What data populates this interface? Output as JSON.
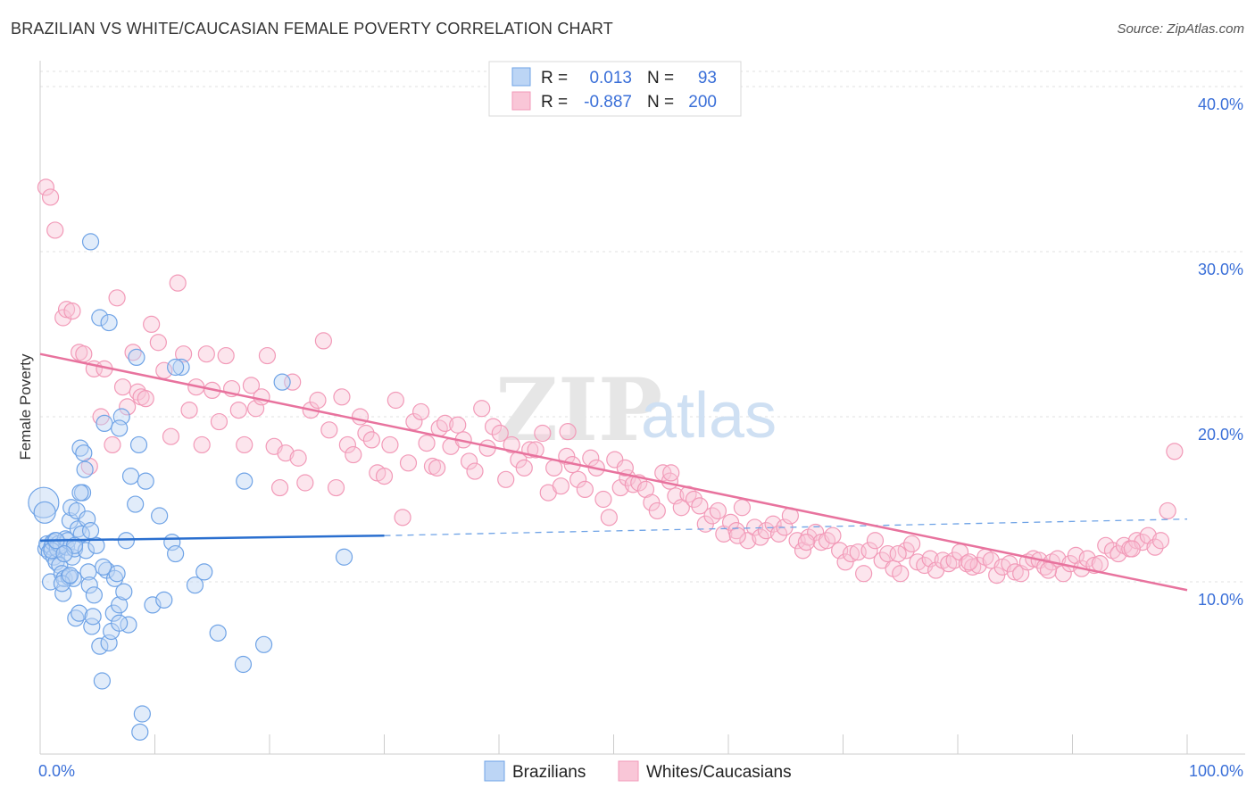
{
  "title": "BRAZILIAN VS WHITE/CAUCASIAN FEMALE POVERTY CORRELATION CHART",
  "source": "Source: ZipAtlas.com",
  "watermark": {
    "zip": "ZIP",
    "atlas": "atlas"
  },
  "colors": {
    "blue": "#6fa3e6",
    "blue_line": "#2a6fcf",
    "pink": "#f29ab8",
    "pink_line": "#e8739e",
    "tick": "#3a6fd8"
  },
  "legend": {
    "rows": [
      {
        "r_label": "R =",
        "r_value": "0.013",
        "n_label": "N =",
        "n_value": "93"
      },
      {
        "r_label": "R =",
        "r_value": "-0.887",
        "n_label": "N =",
        "n_value": "200"
      }
    ]
  },
  "bottom_legend": [
    "Brazilians",
    "Whites/Caucasians"
  ],
  "chart_data": {
    "type": "scatter",
    "ylabel": "Female Poverty",
    "xlim": [
      0,
      100
    ],
    "ylim": [
      0,
      40
    ],
    "x_tick_labels": [
      "0.0%",
      "100.0%"
    ],
    "y_ticks": [
      10,
      20,
      30,
      40
    ],
    "y_tick_labels": [
      "10.0%",
      "20.0%",
      "30.0%",
      "40.0%"
    ],
    "grid": true,
    "series": [
      {
        "name": "Brazilians",
        "points": [
          [
            0.3,
            14.8
          ],
          [
            0.4,
            14.2
          ],
          [
            0.5,
            12.0
          ],
          [
            0.6,
            12.3
          ],
          [
            0.8,
            11.8
          ],
          [
            0.9,
            10.0
          ],
          [
            1.0,
            12.1
          ],
          [
            1.1,
            12.4
          ],
          [
            1.2,
            11.5
          ],
          [
            1.3,
            12.5
          ],
          [
            1.4,
            11.2
          ],
          [
            1.5,
            12.0
          ],
          [
            1.6,
            12.3
          ],
          [
            1.7,
            11.0
          ],
          [
            1.8,
            12.2
          ],
          [
            1.9,
            10.5
          ],
          [
            2.0,
            9.3
          ],
          [
            2.1,
            10.2
          ],
          [
            2.2,
            12.6
          ],
          [
            2.3,
            12.1
          ],
          [
            2.4,
            12.5
          ],
          [
            2.5,
            10.3
          ],
          [
            2.6,
            13.7
          ],
          [
            2.7,
            14.5
          ],
          [
            2.8,
            11.5
          ],
          [
            2.9,
            10.2
          ],
          [
            3.0,
            12.0
          ],
          [
            3.1,
            7.8
          ],
          [
            3.2,
            14.3
          ],
          [
            3.3,
            13.2
          ],
          [
            3.4,
            8.1
          ],
          [
            3.5,
            18.1
          ],
          [
            3.6,
            12.9
          ],
          [
            3.7,
            15.4
          ],
          [
            3.8,
            17.8
          ],
          [
            3.9,
            16.8
          ],
          [
            4.0,
            11.9
          ],
          [
            4.1,
            13.8
          ],
          [
            4.2,
            10.6
          ],
          [
            4.3,
            9.8
          ],
          [
            4.4,
            13.1
          ],
          [
            4.5,
            7.3
          ],
          [
            4.7,
            9.2
          ],
          [
            4.9,
            12.2
          ],
          [
            5.2,
            6.1
          ],
          [
            5.4,
            4.0
          ],
          [
            5.6,
            19.6
          ],
          [
            5.8,
            10.7
          ],
          [
            6.0,
            6.3
          ],
          [
            6.2,
            7.0
          ],
          [
            6.4,
            8.1
          ],
          [
            6.5,
            10.2
          ],
          [
            6.7,
            10.5
          ],
          [
            6.9,
            8.6
          ],
          [
            7.1,
            20.0
          ],
          [
            7.3,
            9.4
          ],
          [
            7.5,
            12.5
          ],
          [
            7.7,
            7.4
          ],
          [
            7.9,
            16.4
          ],
          [
            8.3,
            14.7
          ],
          [
            8.6,
            18.3
          ],
          [
            8.9,
            2.0
          ],
          [
            9.2,
            16.1
          ],
          [
            9.8,
            8.6
          ],
          [
            10.4,
            14.0
          ],
          [
            10.8,
            8.9
          ],
          [
            11.5,
            12.4
          ],
          [
            11.8,
            11.7
          ],
          [
            12.3,
            23.0
          ],
          [
            13.5,
            9.8
          ],
          [
            14.3,
            10.6
          ],
          [
            15.5,
            6.9
          ],
          [
            17.7,
            5.0
          ],
          [
            17.8,
            16.1
          ],
          [
            19.5,
            6.2
          ],
          [
            21.1,
            22.1
          ],
          [
            26.5,
            11.5
          ],
          [
            8.4,
            23.6
          ],
          [
            6.9,
            19.3
          ],
          [
            5.2,
            26.0
          ],
          [
            6.0,
            25.7
          ],
          [
            4.4,
            30.6
          ],
          [
            11.8,
            23.0
          ],
          [
            3.5,
            15.4
          ],
          [
            1.9,
            9.9
          ],
          [
            2.6,
            10.4
          ],
          [
            3.0,
            12.2
          ],
          [
            1.0,
            11.9
          ],
          [
            8.7,
            0.9
          ],
          [
            6.9,
            7.5
          ],
          [
            5.5,
            10.9
          ],
          [
            1.4,
            12.5
          ],
          [
            2.1,
            11.7
          ],
          [
            4.6,
            7.9
          ]
        ]
      },
      {
        "name": "Whites/Caucasians",
        "points": [
          [
            0.5,
            33.9
          ],
          [
            0.9,
            33.3
          ],
          [
            1.3,
            31.3
          ],
          [
            2.0,
            26.0
          ],
          [
            2.3,
            26.5
          ],
          [
            2.8,
            26.4
          ],
          [
            3.4,
            23.9
          ],
          [
            3.8,
            23.8
          ],
          [
            4.3,
            17.0
          ],
          [
            4.7,
            22.9
          ],
          [
            5.3,
            20.0
          ],
          [
            5.6,
            22.9
          ],
          [
            6.3,
            18.3
          ],
          [
            6.7,
            27.2
          ],
          [
            7.2,
            21.8
          ],
          [
            7.6,
            20.6
          ],
          [
            8.1,
            23.9
          ],
          [
            8.5,
            21.5
          ],
          [
            8.8,
            21.2
          ],
          [
            9.2,
            21.1
          ],
          [
            9.7,
            25.6
          ],
          [
            10.3,
            24.5
          ],
          [
            10.8,
            22.8
          ],
          [
            11.4,
            18.8
          ],
          [
            12.0,
            28.1
          ],
          [
            12.5,
            23.8
          ],
          [
            13.0,
            20.4
          ],
          [
            13.6,
            21.8
          ],
          [
            14.1,
            18.3
          ],
          [
            14.5,
            23.8
          ],
          [
            15.0,
            21.6
          ],
          [
            15.6,
            19.7
          ],
          [
            16.2,
            23.7
          ],
          [
            16.7,
            21.7
          ],
          [
            17.3,
            20.4
          ],
          [
            17.8,
            18.3
          ],
          [
            18.4,
            21.9
          ],
          [
            18.8,
            20.5
          ],
          [
            19.3,
            21.2
          ],
          [
            19.8,
            23.7
          ],
          [
            20.4,
            18.2
          ],
          [
            20.9,
            15.7
          ],
          [
            21.4,
            17.8
          ],
          [
            22.0,
            22.1
          ],
          [
            22.5,
            17.5
          ],
          [
            23.1,
            16.0
          ],
          [
            23.6,
            20.4
          ],
          [
            24.2,
            21.0
          ],
          [
            24.7,
            24.6
          ],
          [
            25.2,
            19.2
          ],
          [
            25.8,
            15.7
          ],
          [
            26.3,
            21.2
          ],
          [
            26.8,
            18.3
          ],
          [
            27.3,
            17.7
          ],
          [
            27.9,
            20.0
          ],
          [
            28.4,
            19.0
          ],
          [
            28.9,
            18.6
          ],
          [
            29.4,
            16.6
          ],
          [
            30.0,
            16.4
          ],
          [
            30.5,
            18.3
          ],
          [
            31.0,
            21.0
          ],
          [
            31.6,
            13.9
          ],
          [
            32.1,
            17.2
          ],
          [
            32.6,
            19.7
          ],
          [
            33.2,
            20.3
          ],
          [
            33.7,
            18.4
          ],
          [
            34.2,
            17.0
          ],
          [
            34.8,
            19.3
          ],
          [
            35.3,
            19.6
          ],
          [
            35.8,
            18.2
          ],
          [
            36.4,
            19.5
          ],
          [
            36.9,
            18.6
          ],
          [
            37.4,
            17.3
          ],
          [
            37.9,
            16.7
          ],
          [
            38.5,
            20.5
          ],
          [
            39.0,
            18.1
          ],
          [
            39.5,
            19.4
          ],
          [
            40.1,
            19.0
          ],
          [
            40.6,
            16.2
          ],
          [
            41.1,
            18.3
          ],
          [
            41.7,
            17.4
          ],
          [
            42.2,
            16.9
          ],
          [
            42.7,
            18.0
          ],
          [
            43.2,
            18.0
          ],
          [
            43.8,
            19.0
          ],
          [
            44.3,
            15.4
          ],
          [
            44.8,
            16.9
          ],
          [
            45.4,
            15.8
          ],
          [
            45.9,
            17.6
          ],
          [
            46.4,
            17.1
          ],
          [
            46.9,
            16.2
          ],
          [
            47.5,
            15.6
          ],
          [
            48.0,
            17.5
          ],
          [
            48.5,
            16.9
          ],
          [
            49.1,
            15.0
          ],
          [
            49.6,
            13.9
          ],
          [
            50.1,
            17.4
          ],
          [
            50.6,
            15.7
          ],
          [
            51.2,
            16.3
          ],
          [
            51.7,
            15.9
          ],
          [
            52.2,
            16.0
          ],
          [
            52.8,
            15.6
          ],
          [
            53.3,
            14.8
          ],
          [
            53.8,
            14.3
          ],
          [
            54.3,
            16.6
          ],
          [
            54.9,
            16.1
          ],
          [
            55.4,
            15.2
          ],
          [
            55.9,
            14.5
          ],
          [
            56.5,
            15.3
          ],
          [
            57.0,
            15.0
          ],
          [
            57.5,
            14.6
          ],
          [
            58.0,
            13.5
          ],
          [
            58.6,
            14.0
          ],
          [
            59.1,
            14.3
          ],
          [
            59.6,
            12.9
          ],
          [
            60.2,
            13.6
          ],
          [
            60.7,
            13.1
          ],
          [
            61.2,
            14.5
          ],
          [
            61.7,
            12.5
          ],
          [
            62.3,
            13.3
          ],
          [
            62.8,
            12.7
          ],
          [
            63.3,
            13.1
          ],
          [
            63.9,
            13.5
          ],
          [
            64.4,
            12.9
          ],
          [
            64.9,
            13.3
          ],
          [
            65.4,
            14.0
          ],
          [
            66.0,
            12.5
          ],
          [
            66.5,
            11.9
          ],
          [
            67.0,
            12.7
          ],
          [
            67.6,
            13.0
          ],
          [
            68.1,
            12.4
          ],
          [
            68.6,
            12.5
          ],
          [
            69.1,
            12.8
          ],
          [
            69.7,
            11.9
          ],
          [
            70.2,
            11.2
          ],
          [
            70.7,
            11.7
          ],
          [
            71.3,
            11.8
          ],
          [
            71.8,
            10.5
          ],
          [
            72.3,
            11.9
          ],
          [
            72.8,
            12.5
          ],
          [
            73.4,
            11.3
          ],
          [
            73.9,
            11.7
          ],
          [
            74.4,
            10.8
          ],
          [
            75.0,
            10.5
          ],
          [
            75.5,
            11.9
          ],
          [
            76.0,
            12.3
          ],
          [
            76.5,
            11.2
          ],
          [
            77.1,
            11.0
          ],
          [
            77.6,
            11.4
          ],
          [
            78.1,
            10.7
          ],
          [
            78.7,
            11.3
          ],
          [
            79.2,
            11.1
          ],
          [
            79.7,
            11.3
          ],
          [
            80.2,
            11.8
          ],
          [
            80.8,
            11.1
          ],
          [
            81.3,
            10.9
          ],
          [
            81.8,
            11.0
          ],
          [
            82.4,
            11.5
          ],
          [
            82.9,
            11.3
          ],
          [
            83.4,
            10.4
          ],
          [
            83.9,
            10.9
          ],
          [
            84.5,
            11.1
          ],
          [
            85.0,
            10.6
          ],
          [
            85.5,
            10.5
          ],
          [
            86.1,
            11.2
          ],
          [
            86.6,
            11.4
          ],
          [
            87.1,
            11.3
          ],
          [
            87.6,
            10.9
          ],
          [
            88.2,
            11.2
          ],
          [
            88.7,
            11.4
          ],
          [
            89.2,
            10.5
          ],
          [
            89.8,
            11.1
          ],
          [
            90.3,
            11.6
          ],
          [
            90.8,
            10.8
          ],
          [
            91.3,
            11.4
          ],
          [
            91.9,
            11.0
          ],
          [
            92.4,
            11.1
          ],
          [
            92.9,
            12.2
          ],
          [
            93.5,
            11.9
          ],
          [
            94.0,
            11.7
          ],
          [
            94.5,
            12.2
          ],
          [
            95.0,
            12.0
          ],
          [
            95.6,
            12.5
          ],
          [
            96.1,
            12.4
          ],
          [
            96.6,
            12.8
          ],
          [
            97.2,
            12.1
          ],
          [
            97.7,
            12.5
          ],
          [
            98.3,
            14.3
          ],
          [
            98.9,
            17.9
          ],
          [
            55.0,
            16.6
          ],
          [
            60.8,
            12.8
          ],
          [
            66.8,
            12.4
          ],
          [
            74.8,
            11.7
          ],
          [
            81.0,
            11.2
          ],
          [
            87.9,
            10.7
          ],
          [
            95.2,
            12.0
          ],
          [
            34.6,
            16.9
          ],
          [
            46.0,
            19.1
          ],
          [
            51.0,
            16.9
          ]
        ]
      }
    ],
    "trend_lines": [
      {
        "series": "Brazilians",
        "solid": [
          [
            0,
            12.5
          ],
          [
            30,
            12.8
          ]
        ],
        "dashed": [
          [
            30,
            12.8
          ],
          [
            100,
            13.8
          ]
        ]
      },
      {
        "series": "Whites/Caucasians",
        "solid": [
          [
            0,
            23.8
          ],
          [
            100,
            9.5
          ]
        ]
      }
    ]
  }
}
